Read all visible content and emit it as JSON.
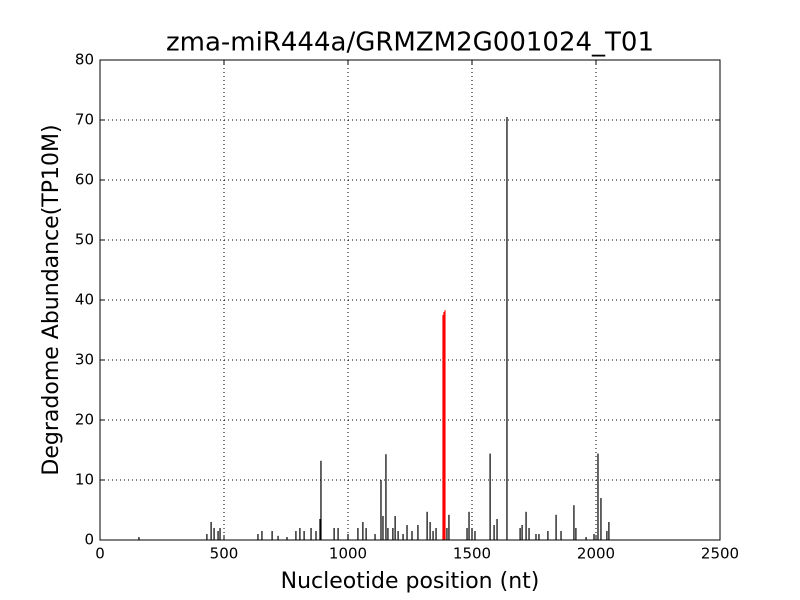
{
  "chart_data": {
    "type": "stem",
    "title": "zma-miR444a/GRMZM2G001024_T01",
    "x_label": "Nucleotide position (nt)",
    "y_label": "Degradome Abundance(TP10M)",
    "xlim": [
      0,
      2500
    ],
    "xticks": [
      0,
      500,
      1000,
      1500,
      2000,
      2500
    ],
    "ylim": [
      0,
      80
    ],
    "yticks": [
      0,
      10,
      20,
      30,
      40,
      50,
      60,
      70,
      80
    ],
    "grid": true,
    "series": [
      {
        "color": "#000000",
        "x": [
          157,
          431,
          448,
          460,
          476,
          484,
          637,
          653,
          694,
          718,
          754,
          790,
          806,
          823,
          851,
          871,
          887,
          891,
          944,
          960,
          1000,
          1040,
          1060,
          1073,
          1109,
          1133,
          1141,
          1153,
          1161,
          1181,
          1190,
          1202,
          1222,
          1238,
          1258,
          1282,
          1319,
          1331,
          1343,
          1355,
          1399,
          1407,
          1480,
          1488,
          1500,
          1512,
          1573,
          1589,
          1601,
          1641,
          1694,
          1702,
          1718,
          1730,
          1758,
          1770,
          1806,
          1839,
          1859,
          1911,
          1919,
          1960,
          1992,
          2008,
          2020,
          2044,
          2052
        ],
        "values": [
          0.5,
          1,
          3,
          2,
          1.5,
          2,
          1,
          1.5,
          1.5,
          0.7,
          0.5,
          1.5,
          2,
          1.5,
          2,
          1.5,
          3.5,
          13.2,
          2,
          2,
          1,
          2,
          3,
          2,
          1,
          10,
          4,
          14.3,
          2,
          2,
          4,
          1.5,
          1,
          2.5,
          1.5,
          2.5,
          4.7,
          3,
          1.5,
          2,
          2,
          4.2,
          2,
          4.7,
          2,
          1.5,
          14.4,
          2.5,
          3.5,
          70.5,
          2,
          2.5,
          4.7,
          2,
          1,
          1,
          1.5,
          4.2,
          1.5,
          5.8,
          2,
          0.5,
          1,
          14.4,
          7,
          1.5,
          3
        ]
      },
      {
        "color": "#ff0000",
        "x": [
          1383,
          1387,
          1391
        ],
        "values": [
          37.5,
          38,
          38.3
        ]
      }
    ]
  }
}
